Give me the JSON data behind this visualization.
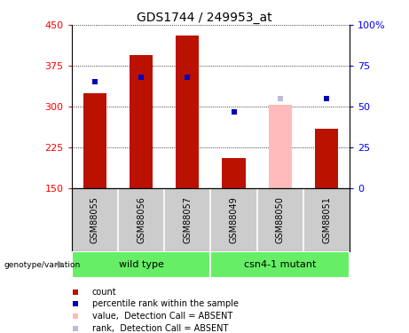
{
  "title": "GDS1744 / 249953_at",
  "samples": [
    "GSM88055",
    "GSM88056",
    "GSM88057",
    "GSM88049",
    "GSM88050",
    "GSM88051"
  ],
  "count_values": [
    325,
    395,
    430,
    205,
    303,
    260
  ],
  "rank_values": [
    65,
    68,
    68,
    47,
    55,
    55
  ],
  "absent_flags": [
    false,
    false,
    false,
    false,
    true,
    false
  ],
  "ylim_left": [
    150,
    450
  ],
  "ylim_right": [
    0,
    100
  ],
  "yticks_left": [
    150,
    225,
    300,
    375,
    450
  ],
  "yticks_right": [
    0,
    25,
    50,
    75,
    100
  ],
  "ytick_labels_right": [
    "0",
    "25",
    "50",
    "75",
    "100%"
  ],
  "bar_color_present": "#bb1100",
  "bar_color_absent": "#ffbbbb",
  "dot_color_present": "#0000bb",
  "dot_color_absent": "#bbbbdd",
  "bar_width": 0.5,
  "group_labels": [
    "wild type",
    "csn4-1 mutant"
  ],
  "group_ranges": [
    [
      0,
      2
    ],
    [
      3,
      5
    ]
  ],
  "group_color": "#66ee66",
  "sample_label_bg": "#cccccc",
  "legend_items": [
    {
      "label": "count",
      "color": "#bb1100"
    },
    {
      "label": "percentile rank within the sample",
      "color": "#0000bb"
    },
    {
      "label": "value,  Detection Call = ABSENT",
      "color": "#ffbbbb"
    },
    {
      "label": "rank,  Detection Call = ABSENT",
      "color": "#bbbbdd"
    }
  ],
  "genotype_label": "genotype/variation"
}
